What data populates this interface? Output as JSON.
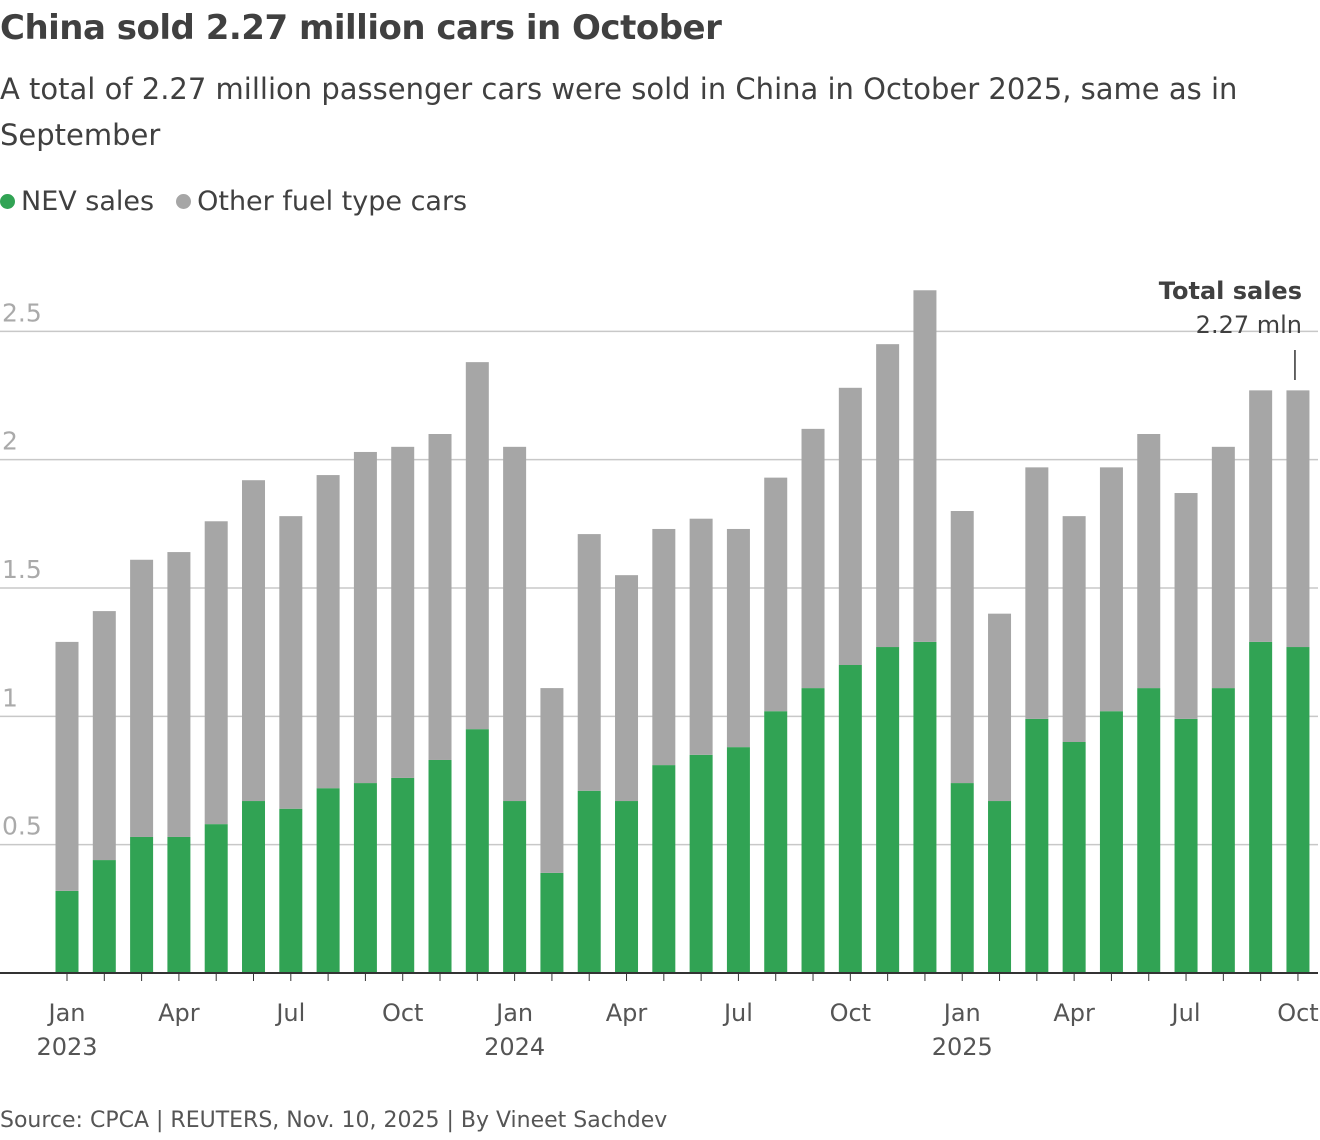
{
  "chart_data": {
    "type": "stacked_bar",
    "title": "China sold 2.27 million cars in October",
    "subtitle": "A total of 2.27 million passenger cars were sold in China in October 2025, same as in September",
    "source": "Source: CPCA | REUTERS, Nov. 10, 2025 | By Vineet Sachdev",
    "annotation": {
      "title": "Total sales",
      "text": "2.27 mln"
    },
    "categories": [
      "Jan",
      null,
      null,
      "Apr",
      null,
      null,
      "Jul",
      null,
      null,
      "Oct",
      null,
      null,
      "Jan",
      null,
      null,
      "Apr",
      null,
      null,
      "Jul",
      null,
      null,
      "Oct",
      null,
      null,
      "Jan",
      null,
      null,
      "Apr",
      null,
      null,
      "Jul",
      null,
      null,
      "Oct"
    ],
    "years": [
      "2023",
      null,
      null,
      null,
      null,
      null,
      null,
      null,
      null,
      null,
      null,
      null,
      "2024",
      null,
      null,
      null,
      null,
      null,
      null,
      null,
      null,
      null,
      null,
      null,
      "2025",
      null,
      null,
      null,
      null,
      null,
      null,
      null,
      null,
      null
    ],
    "series": [
      {
        "name": "NEV sales",
        "color": "#31a354",
        "values": [
          0.32,
          0.44,
          0.53,
          0.53,
          0.58,
          0.67,
          0.64,
          0.72,
          0.74,
          0.76,
          0.83,
          0.95,
          0.67,
          0.39,
          0.71,
          0.67,
          0.81,
          0.85,
          0.88,
          1.02,
          1.11,
          1.2,
          1.27,
          1.29,
          0.74,
          0.67,
          0.99,
          0.9,
          1.02,
          1.11,
          0.99,
          1.11,
          1.29,
          1.27
        ]
      },
      {
        "name": "Other fuel type cars",
        "color": "#a6a6a6",
        "values": [
          0.97,
          0.97,
          1.08,
          1.11,
          1.18,
          1.25,
          1.14,
          1.22,
          1.29,
          1.29,
          1.27,
          1.43,
          1.38,
          0.72,
          1.0,
          0.88,
          0.92,
          0.92,
          0.85,
          0.91,
          1.01,
          1.08,
          1.18,
          1.37,
          1.06,
          0.73,
          0.98,
          0.88,
          0.95,
          0.99,
          0.88,
          0.94,
          0.98,
          1.0
        ]
      }
    ],
    "ylim": [
      0,
      2.7
    ],
    "yticks": [
      0.5,
      1,
      1.5,
      2,
      2.5
    ],
    "grid": true
  }
}
